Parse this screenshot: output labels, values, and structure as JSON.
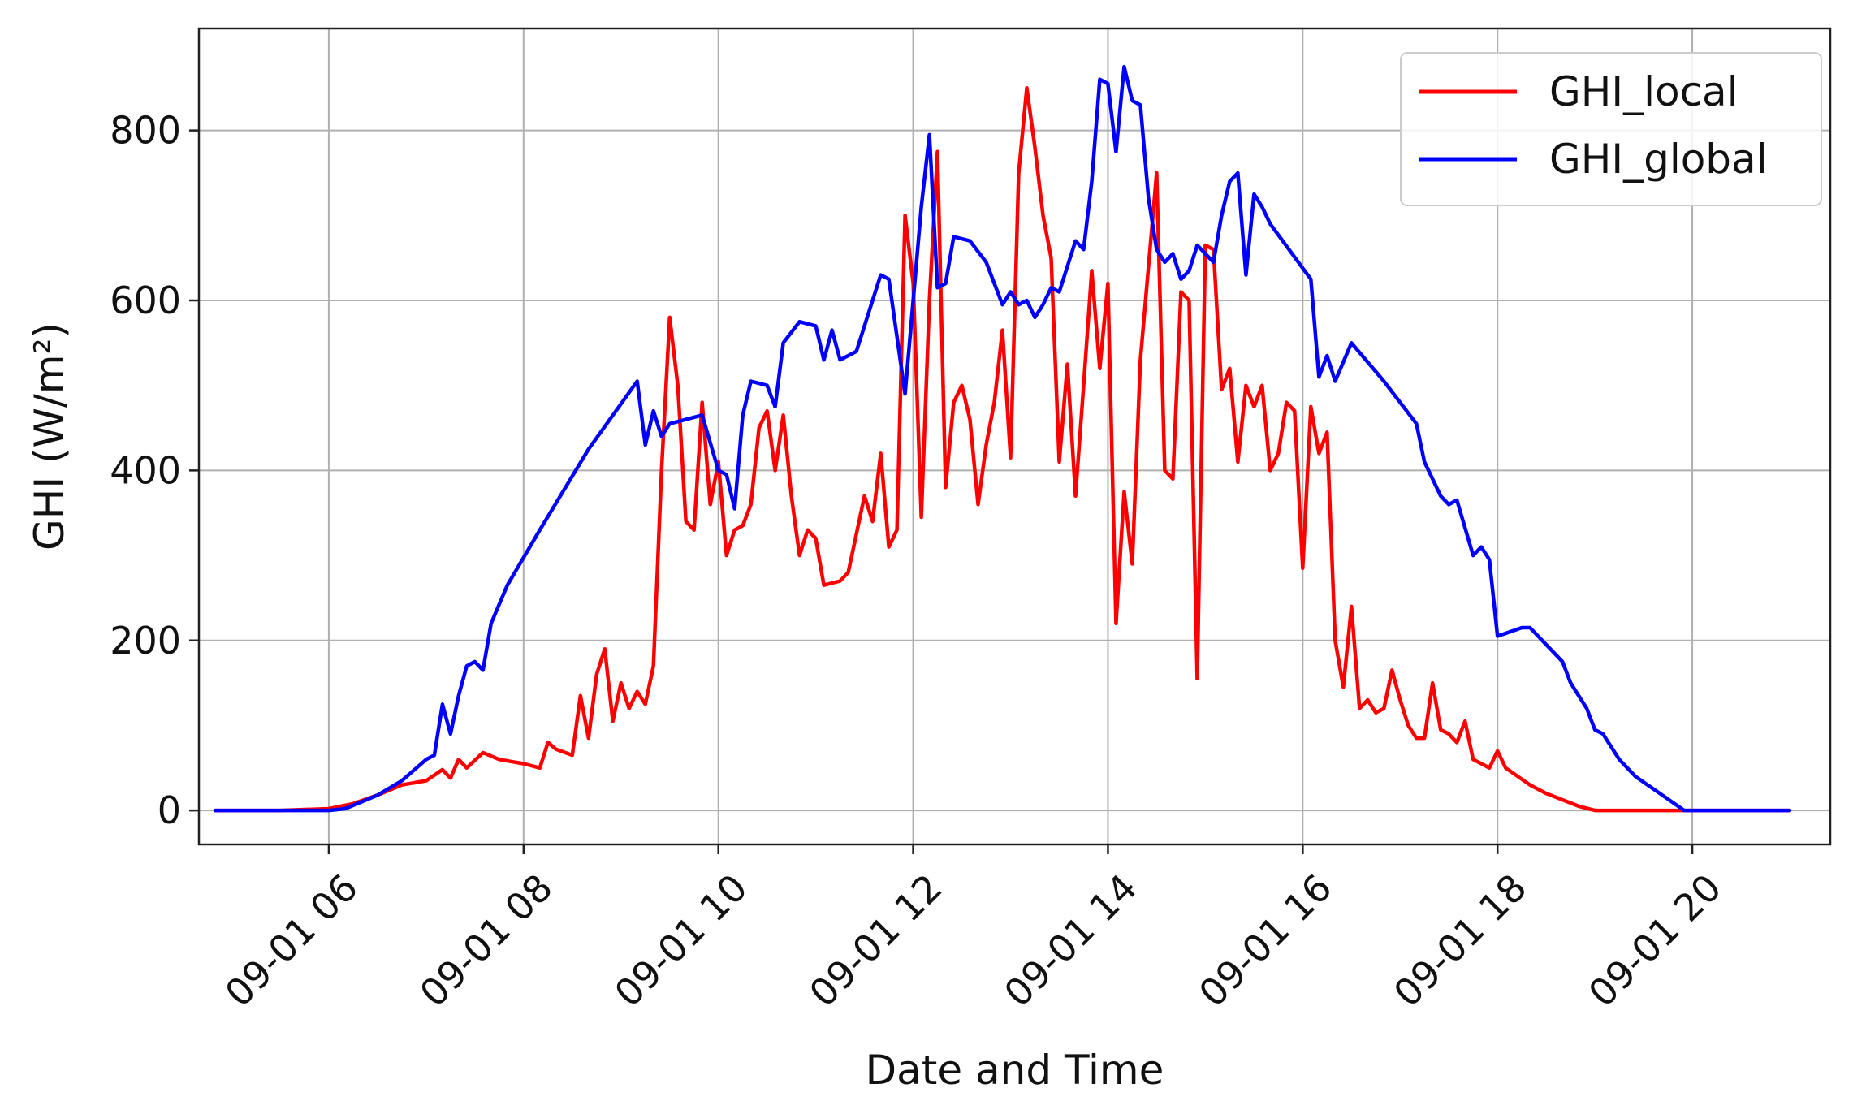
{
  "chart_data": {
    "type": "line",
    "title": "",
    "xlabel": "Date and Time",
    "ylabel": "GHI (W/m²)",
    "xlim": [
      "09-01 04:40",
      "09-01 21:25"
    ],
    "ylim": [
      -40,
      920
    ],
    "grid": true,
    "legend_position": "top-right",
    "x_ticks": [
      {
        "value": "09-01 06:00",
        "label": "09-01 06"
      },
      {
        "value": "09-01 08:00",
        "label": "09-01 08"
      },
      {
        "value": "09-01 10:00",
        "label": "09-01 10"
      },
      {
        "value": "09-01 12:00",
        "label": "09-01 12"
      },
      {
        "value": "09-01 14:00",
        "label": "09-01 14"
      },
      {
        "value": "09-01 16:00",
        "label": "09-01 16"
      },
      {
        "value": "09-01 18:00",
        "label": "09-01 18"
      },
      {
        "value": "09-01 20:00",
        "label": "09-01 20"
      }
    ],
    "y_ticks": [
      {
        "value": 0,
        "label": "0"
      },
      {
        "value": 200,
        "label": "200"
      },
      {
        "value": 400,
        "label": "400"
      },
      {
        "value": 600,
        "label": "600"
      },
      {
        "value": 800,
        "label": "800"
      }
    ],
    "series": [
      {
        "name": "GHI_local",
        "color": "#ff0000",
        "points": [
          [
            "09-01 04:50",
            0
          ],
          [
            "09-01 05:30",
            0
          ],
          [
            "09-01 06:00",
            2
          ],
          [
            "09-01 06:15",
            8
          ],
          [
            "09-01 06:30",
            18
          ],
          [
            "09-01 06:45",
            30
          ],
          [
            "09-01 07:00",
            35
          ],
          [
            "09-01 07:10",
            48
          ],
          [
            "09-01 07:15",
            38
          ],
          [
            "09-01 07:20",
            60
          ],
          [
            "09-01 07:25",
            50
          ],
          [
            "09-01 07:35",
            68
          ],
          [
            "09-01 07:45",
            60
          ],
          [
            "09-01 08:00",
            55
          ],
          [
            "09-01 08:10",
            50
          ],
          [
            "09-01 08:15",
            80
          ],
          [
            "09-01 08:20",
            72
          ],
          [
            "09-01 08:30",
            65
          ],
          [
            "09-01 08:35",
            135
          ],
          [
            "09-01 08:40",
            85
          ],
          [
            "09-01 08:45",
            160
          ],
          [
            "09-01 08:50",
            190
          ],
          [
            "09-01 08:55",
            105
          ],
          [
            "09-01 09:00",
            150
          ],
          [
            "09-01 09:05",
            120
          ],
          [
            "09-01 09:10",
            140
          ],
          [
            "09-01 09:15",
            125
          ],
          [
            "09-01 09:20",
            170
          ],
          [
            "09-01 09:25",
            400
          ],
          [
            "09-01 09:30",
            580
          ],
          [
            "09-01 09:35",
            500
          ],
          [
            "09-01 09:40",
            340
          ],
          [
            "09-01 09:45",
            330
          ],
          [
            "09-01 09:50",
            480
          ],
          [
            "09-01 09:55",
            360
          ],
          [
            "09-01 10:00",
            410
          ],
          [
            "09-01 10:05",
            300
          ],
          [
            "09-01 10:10",
            330
          ],
          [
            "09-01 10:15",
            335
          ],
          [
            "09-01 10:20",
            360
          ],
          [
            "09-01 10:25",
            450
          ],
          [
            "09-01 10:30",
            470
          ],
          [
            "09-01 10:35",
            400
          ],
          [
            "09-01 10:40",
            465
          ],
          [
            "09-01 10:45",
            370
          ],
          [
            "09-01 10:50",
            300
          ],
          [
            "09-01 10:55",
            330
          ],
          [
            "09-01 11:00",
            320
          ],
          [
            "09-01 11:05",
            265
          ],
          [
            "09-01 11:15",
            270
          ],
          [
            "09-01 11:20",
            280
          ],
          [
            "09-01 11:30",
            370
          ],
          [
            "09-01 11:35",
            340
          ],
          [
            "09-01 11:40",
            420
          ],
          [
            "09-01 11:45",
            310
          ],
          [
            "09-01 11:50",
            330
          ],
          [
            "09-01 11:55",
            700
          ],
          [
            "09-01 12:00",
            620
          ],
          [
            "09-01 12:05",
            345
          ],
          [
            "09-01 12:10",
            600
          ],
          [
            "09-01 12:15",
            775
          ],
          [
            "09-01 12:20",
            380
          ],
          [
            "09-01 12:25",
            480
          ],
          [
            "09-01 12:30",
            500
          ],
          [
            "09-01 12:35",
            460
          ],
          [
            "09-01 12:40",
            360
          ],
          [
            "09-01 12:45",
            430
          ],
          [
            "09-01 12:50",
            480
          ],
          [
            "09-01 12:55",
            565
          ],
          [
            "09-01 13:00",
            415
          ],
          [
            "09-01 13:05",
            750
          ],
          [
            "09-01 13:10",
            850
          ],
          [
            "09-01 13:15",
            780
          ],
          [
            "09-01 13:20",
            700
          ],
          [
            "09-01 13:25",
            650
          ],
          [
            "09-01 13:30",
            410
          ],
          [
            "09-01 13:35",
            525
          ],
          [
            "09-01 13:40",
            370
          ],
          [
            "09-01 13:45",
            500
          ],
          [
            "09-01 13:50",
            635
          ],
          [
            "09-01 13:55",
            520
          ],
          [
            "09-01 14:00",
            620
          ],
          [
            "09-01 14:05",
            220
          ],
          [
            "09-01 14:10",
            375
          ],
          [
            "09-01 14:15",
            290
          ],
          [
            "09-01 14:20",
            530
          ],
          [
            "09-01 14:25",
            640
          ],
          [
            "09-01 14:30",
            750
          ],
          [
            "09-01 14:35",
            400
          ],
          [
            "09-01 14:40",
            390
          ],
          [
            "09-01 14:45",
            610
          ],
          [
            "09-01 14:50",
            600
          ],
          [
            "09-01 14:55",
            155
          ],
          [
            "09-01 15:00",
            665
          ],
          [
            "09-01 15:05",
            660
          ],
          [
            "09-01 15:10",
            495
          ],
          [
            "09-01 15:15",
            520
          ],
          [
            "09-01 15:20",
            410
          ],
          [
            "09-01 15:25",
            500
          ],
          [
            "09-01 15:30",
            475
          ],
          [
            "09-01 15:35",
            500
          ],
          [
            "09-01 15:40",
            400
          ],
          [
            "09-01 15:45",
            420
          ],
          [
            "09-01 15:50",
            480
          ],
          [
            "09-01 15:55",
            470
          ],
          [
            "09-01 16:00",
            285
          ],
          [
            "09-01 16:05",
            475
          ],
          [
            "09-01 16:10",
            420
          ],
          [
            "09-01 16:15",
            445
          ],
          [
            "09-01 16:20",
            200
          ],
          [
            "09-01 16:25",
            145
          ],
          [
            "09-01 16:30",
            240
          ],
          [
            "09-01 16:35",
            120
          ],
          [
            "09-01 16:40",
            130
          ],
          [
            "09-01 16:45",
            115
          ],
          [
            "09-01 16:50",
            120
          ],
          [
            "09-01 16:55",
            165
          ],
          [
            "09-01 17:00",
            130
          ],
          [
            "09-01 17:05",
            100
          ],
          [
            "09-01 17:10",
            85
          ],
          [
            "09-01 17:15",
            85
          ],
          [
            "09-01 17:20",
            150
          ],
          [
            "09-01 17:25",
            95
          ],
          [
            "09-01 17:30",
            90
          ],
          [
            "09-01 17:35",
            80
          ],
          [
            "09-01 17:40",
            105
          ],
          [
            "09-01 17:45",
            60
          ],
          [
            "09-01 17:50",
            55
          ],
          [
            "09-01 17:55",
            50
          ],
          [
            "09-01 18:00",
            70
          ],
          [
            "09-01 18:05",
            50
          ],
          [
            "09-01 18:20",
            30
          ],
          [
            "09-01 18:30",
            20
          ],
          [
            "09-01 18:50",
            5
          ],
          [
            "09-01 19:00",
            0
          ],
          [
            "09-01 21:00",
            0
          ]
        ]
      },
      {
        "name": "GHI_global",
        "color": "#0000ff",
        "points": [
          [
            "09-01 04:50",
            0
          ],
          [
            "09-01 05:30",
            0
          ],
          [
            "09-01 06:00",
            0
          ],
          [
            "09-01 06:10",
            2
          ],
          [
            "09-01 06:20",
            10
          ],
          [
            "09-01 06:30",
            18
          ],
          [
            "09-01 06:45",
            35
          ],
          [
            "09-01 07:00",
            60
          ],
          [
            "09-01 07:05",
            65
          ],
          [
            "09-01 07:10",
            125
          ],
          [
            "09-01 07:15",
            90
          ],
          [
            "09-01 07:20",
            135
          ],
          [
            "09-01 07:25",
            170
          ],
          [
            "09-01 07:30",
            175
          ],
          [
            "09-01 07:35",
            165
          ],
          [
            "09-01 07:40",
            220
          ],
          [
            "09-01 07:50",
            265
          ],
          [
            "09-01 08:10",
            330
          ],
          [
            "09-01 08:40",
            425
          ],
          [
            "09-01 09:10",
            505
          ],
          [
            "09-01 09:15",
            430
          ],
          [
            "09-01 09:20",
            470
          ],
          [
            "09-01 09:25",
            440
          ],
          [
            "09-01 09:30",
            455
          ],
          [
            "09-01 09:40",
            460
          ],
          [
            "09-01 09:50",
            465
          ],
          [
            "09-01 10:00",
            400
          ],
          [
            "09-01 10:05",
            395
          ],
          [
            "09-01 10:10",
            355
          ],
          [
            "09-01 10:15",
            465
          ],
          [
            "09-01 10:20",
            505
          ],
          [
            "09-01 10:30",
            500
          ],
          [
            "09-01 10:35",
            475
          ],
          [
            "09-01 10:40",
            550
          ],
          [
            "09-01 10:50",
            575
          ],
          [
            "09-01 11:00",
            570
          ],
          [
            "09-01 11:05",
            530
          ],
          [
            "09-01 11:10",
            565
          ],
          [
            "09-01 11:15",
            530
          ],
          [
            "09-01 11:25",
            540
          ],
          [
            "09-01 11:40",
            630
          ],
          [
            "09-01 11:45",
            625
          ],
          [
            "09-01 11:55",
            490
          ],
          [
            "09-01 12:05",
            710
          ],
          [
            "09-01 12:10",
            795
          ],
          [
            "09-01 12:15",
            615
          ],
          [
            "09-01 12:20",
            620
          ],
          [
            "09-01 12:25",
            675
          ],
          [
            "09-01 12:35",
            670
          ],
          [
            "09-01 12:45",
            645
          ],
          [
            "09-01 12:55",
            595
          ],
          [
            "09-01 13:00",
            610
          ],
          [
            "09-01 13:05",
            595
          ],
          [
            "09-01 13:10",
            600
          ],
          [
            "09-01 13:15",
            580
          ],
          [
            "09-01 13:20",
            595
          ],
          [
            "09-01 13:25",
            615
          ],
          [
            "09-01 13:30",
            610
          ],
          [
            "09-01 13:35",
            640
          ],
          [
            "09-01 13:40",
            670
          ],
          [
            "09-01 13:45",
            660
          ],
          [
            "09-01 13:50",
            740
          ],
          [
            "09-01 13:55",
            860
          ],
          [
            "09-01 14:00",
            855
          ],
          [
            "09-01 14:05",
            775
          ],
          [
            "09-01 14:10",
            875
          ],
          [
            "09-01 14:15",
            835
          ],
          [
            "09-01 14:20",
            830
          ],
          [
            "09-01 14:25",
            720
          ],
          [
            "09-01 14:30",
            660
          ],
          [
            "09-01 14:35",
            645
          ],
          [
            "09-01 14:40",
            655
          ],
          [
            "09-01 14:45",
            625
          ],
          [
            "09-01 14:50",
            635
          ],
          [
            "09-01 14:55",
            665
          ],
          [
            "09-01 15:00",
            655
          ],
          [
            "09-01 15:05",
            645
          ],
          [
            "09-01 15:10",
            700
          ],
          [
            "09-01 15:15",
            740
          ],
          [
            "09-01 15:20",
            750
          ],
          [
            "09-01 15:25",
            630
          ],
          [
            "09-01 15:30",
            725
          ],
          [
            "09-01 15:35",
            710
          ],
          [
            "09-01 15:40",
            690
          ],
          [
            "09-01 16:05",
            625
          ],
          [
            "09-01 16:10",
            510
          ],
          [
            "09-01 16:15",
            535
          ],
          [
            "09-01 16:20",
            505
          ],
          [
            "09-01 16:30",
            550
          ],
          [
            "09-01 16:50",
            505
          ],
          [
            "09-01 17:10",
            455
          ],
          [
            "09-01 17:15",
            410
          ],
          [
            "09-01 17:25",
            370
          ],
          [
            "09-01 17:30",
            360
          ],
          [
            "09-01 17:35",
            365
          ],
          [
            "09-01 17:45",
            300
          ],
          [
            "09-01 17:50",
            310
          ],
          [
            "09-01 17:55",
            295
          ],
          [
            "09-01 18:00",
            205
          ],
          [
            "09-01 18:15",
            215
          ],
          [
            "09-01 18:20",
            215
          ],
          [
            "09-01 18:40",
            175
          ],
          [
            "09-01 18:45",
            150
          ],
          [
            "09-01 18:55",
            120
          ],
          [
            "09-01 19:00",
            95
          ],
          [
            "09-01 19:05",
            90
          ],
          [
            "09-01 19:15",
            60
          ],
          [
            "09-01 19:25",
            40
          ],
          [
            "09-01 19:40",
            20
          ],
          [
            "09-01 19:55",
            0
          ],
          [
            "09-01 21:00",
            0
          ]
        ]
      }
    ]
  }
}
